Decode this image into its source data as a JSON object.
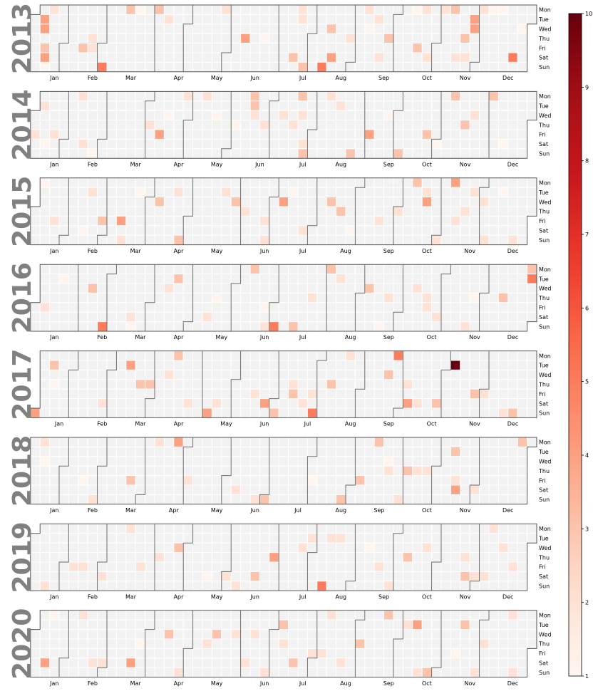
{
  "chart_data": {
    "type": "heatmap",
    "title": "",
    "years": [
      "2013",
      "2014",
      "2015",
      "2016",
      "2017",
      "2018",
      "2019",
      "2020"
    ],
    "weekday_labels": [
      "Mon",
      "Tue",
      "Wed",
      "Thu",
      "Fri",
      "Sat",
      "Sun"
    ],
    "month_labels": [
      "Jan",
      "Feb",
      "Mar",
      "Apr",
      "May",
      "Jun",
      "Jul",
      "Aug",
      "Sep",
      "Oct",
      "Nov",
      "Dec"
    ],
    "colorbar": {
      "min": 1,
      "max": 10,
      "ticks": [
        "1",
        "2",
        "3",
        "4",
        "5",
        "6",
        "7",
        "8",
        "9",
        "10"
      ],
      "colormap": "Reds"
    },
    "empty_color": "#f2f2f2",
    "values": {
      "2013": [
        [
          "2013-01-08",
          4
        ],
        [
          "2013-01-09",
          4
        ],
        [
          "2013-01-11",
          3
        ],
        [
          "2013-01-12",
          4
        ],
        [
          "2013-01-13",
          1
        ],
        [
          "2013-01-14",
          2
        ],
        [
          "2013-02-08",
          3
        ],
        [
          "2013-02-14",
          2
        ],
        [
          "2013-02-15",
          2
        ],
        [
          "2013-02-24",
          5
        ],
        [
          "2013-03-11",
          3
        ],
        [
          "2013-03-18",
          1
        ],
        [
          "2013-04-01",
          3
        ],
        [
          "2013-04-09",
          2
        ],
        [
          "2013-05-20",
          2
        ],
        [
          "2013-06-06",
          4
        ],
        [
          "2013-06-20",
          1
        ],
        [
          "2013-07-13",
          3
        ],
        [
          "2013-07-15",
          2
        ],
        [
          "2013-07-16",
          2
        ],
        [
          "2013-07-21",
          3
        ],
        [
          "2013-08-04",
          5
        ],
        [
          "2013-08-07",
          3
        ],
        [
          "2013-08-10",
          4
        ],
        [
          "2013-08-22",
          2
        ],
        [
          "2013-09-02",
          2
        ],
        [
          "2013-09-04",
          1
        ],
        [
          "2013-09-10",
          2
        ],
        [
          "2013-09-14",
          2
        ],
        [
          "2013-09-19",
          3
        ],
        [
          "2013-10-07",
          1
        ],
        [
          "2013-10-11",
          3
        ],
        [
          "2013-10-14",
          2
        ],
        [
          "2013-10-19",
          2
        ],
        [
          "2013-10-28",
          2
        ],
        [
          "2013-11-04",
          3
        ],
        [
          "2013-11-09",
          2
        ],
        [
          "2013-11-14",
          3
        ],
        [
          "2013-11-16",
          2
        ],
        [
          "2013-11-19",
          4
        ],
        [
          "2013-11-20",
          4
        ],
        [
          "2013-11-25",
          2
        ],
        [
          "2013-12-02",
          1
        ],
        [
          "2013-12-09",
          1
        ],
        [
          "2013-12-21",
          5
        ],
        [
          "2013-12-25",
          1
        ]
      ],
      "2014": [
        [
          "2014-01-03",
          2
        ],
        [
          "2014-01-07",
          2
        ],
        [
          "2014-01-11",
          1
        ],
        [
          "2014-01-17",
          2
        ],
        [
          "2014-02-03",
          2
        ],
        [
          "2014-02-08",
          2
        ],
        [
          "2014-02-16",
          1
        ],
        [
          "2014-03-27",
          2
        ],
        [
          "2014-04-04",
          4
        ],
        [
          "2014-04-09",
          1
        ],
        [
          "2014-04-21",
          2
        ],
        [
          "2014-05-05",
          2
        ],
        [
          "2014-05-14",
          1
        ],
        [
          "2014-05-29",
          1
        ],
        [
          "2014-06-09",
          3
        ],
        [
          "2014-06-10",
          3
        ],
        [
          "2014-06-11",
          2
        ],
        [
          "2014-06-19",
          2
        ],
        [
          "2014-07-02",
          2
        ],
        [
          "2014-07-10",
          2
        ],
        [
          "2014-07-14",
          3
        ],
        [
          "2014-07-16",
          2
        ],
        [
          "2014-07-19",
          2
        ],
        [
          "2014-07-20",
          3
        ],
        [
          "2014-08-04",
          2
        ],
        [
          "2014-08-12",
          2
        ],
        [
          "2014-08-24",
          3
        ],
        [
          "2014-09-05",
          4
        ],
        [
          "2014-09-17",
          1
        ],
        [
          "2014-09-28",
          3
        ],
        [
          "2014-10-17",
          3
        ],
        [
          "2014-10-25",
          1
        ],
        [
          "2014-11-03",
          3
        ],
        [
          "2014-11-13",
          3
        ],
        [
          "2014-11-19",
          2
        ],
        [
          "2014-12-01",
          3
        ],
        [
          "2014-12-13",
          1
        ]
      ],
      "2015": [
        [
          "2015-01-05",
          1
        ],
        [
          "2015-01-16",
          2
        ],
        [
          "2015-02-07",
          1
        ],
        [
          "2015-02-10",
          2
        ],
        [
          "2015-02-20",
          3
        ],
        [
          "2015-03-06",
          4
        ],
        [
          "2015-03-08",
          2
        ],
        [
          "2015-03-17",
          1
        ],
        [
          "2015-04-01",
          3
        ],
        [
          "2015-04-14",
          2
        ],
        [
          "2015-04-19",
          3
        ],
        [
          "2015-05-19",
          2
        ],
        [
          "2015-05-27",
          3
        ],
        [
          "2015-06-04",
          2
        ],
        [
          "2015-06-19",
          2
        ],
        [
          "2015-06-21",
          2
        ],
        [
          "2015-07-01",
          4
        ],
        [
          "2015-07-07",
          1
        ],
        [
          "2015-07-18",
          2
        ],
        [
          "2015-08-05",
          3
        ],
        [
          "2015-08-13",
          3
        ],
        [
          "2015-08-22",
          1
        ],
        [
          "2015-09-11",
          2
        ],
        [
          "2015-09-24",
          2
        ],
        [
          "2015-10-05",
          3
        ],
        [
          "2015-10-13",
          2
        ],
        [
          "2015-10-14",
          4
        ],
        [
          "2015-10-25",
          2
        ],
        [
          "2015-11-02",
          4
        ],
        [
          "2015-11-06",
          2
        ],
        [
          "2015-11-12",
          2
        ],
        [
          "2015-11-17",
          2
        ],
        [
          "2015-11-25",
          2
        ],
        [
          "2015-11-29",
          2
        ],
        [
          "2015-12-08",
          1
        ],
        [
          "2015-12-20",
          2
        ]
      ],
      "2016": [
        [
          "2016-01-08",
          2
        ],
        [
          "2016-01-19",
          1
        ],
        [
          "2016-02-10",
          3
        ],
        [
          "2016-02-21",
          5
        ],
        [
          "2016-03-12",
          2
        ],
        [
          "2016-03-13",
          1
        ],
        [
          "2016-04-06",
          2
        ],
        [
          "2016-04-12",
          3
        ],
        [
          "2016-05-07",
          2
        ],
        [
          "2016-05-12",
          1
        ],
        [
          "2016-06-06",
          3
        ],
        [
          "2016-06-17",
          1
        ],
        [
          "2016-06-19",
          2
        ],
        [
          "2016-06-26",
          5
        ],
        [
          "2016-07-10",
          3
        ],
        [
          "2016-07-21",
          2
        ],
        [
          "2016-08-01",
          3
        ],
        [
          "2016-08-09",
          2
        ],
        [
          "2016-08-31",
          3
        ],
        [
          "2016-09-11",
          1
        ],
        [
          "2016-09-15",
          2
        ],
        [
          "2016-10-05",
          2
        ],
        [
          "2016-10-13",
          2
        ],
        [
          "2016-10-14",
          2
        ],
        [
          "2016-10-22",
          2
        ],
        [
          "2016-11-13",
          2
        ],
        [
          "2016-11-17",
          1
        ],
        [
          "2016-12-08",
          3
        ],
        [
          "2016-12-26",
          3
        ],
        [
          "2016-12-27",
          5
        ]
      ],
      "2017": [
        [
          "2017-01-01",
          4
        ],
        [
          "2017-01-10",
          3
        ],
        [
          "2017-01-12",
          1
        ],
        [
          "2017-02-18",
          2
        ],
        [
          "2017-03-07",
          4
        ],
        [
          "2017-03-16",
          3
        ],
        [
          "2017-03-23",
          3
        ],
        [
          "2017-04-05",
          2
        ],
        [
          "2017-04-10",
          3
        ],
        [
          "2017-04-22",
          2
        ],
        [
          "2017-05-07",
          4
        ],
        [
          "2017-05-13",
          2
        ],
        [
          "2017-06-09",
          2
        ],
        [
          "2017-06-17",
          4
        ],
        [
          "2017-06-25",
          3
        ],
        [
          "2017-07-06",
          2
        ],
        [
          "2017-07-07",
          3
        ],
        [
          "2017-07-15",
          2
        ],
        [
          "2017-07-21",
          2
        ],
        [
          "2017-07-23",
          5
        ],
        [
          "2017-08-03",
          3
        ],
        [
          "2017-08-14",
          2
        ],
        [
          "2017-09-13",
          3
        ],
        [
          "2017-09-18",
          5
        ],
        [
          "2017-09-28",
          2
        ],
        [
          "2017-09-30",
          4
        ],
        [
          "2017-10-07",
          2
        ],
        [
          "2017-10-21",
          3
        ],
        [
          "2017-10-31",
          10
        ],
        [
          "2017-11-17",
          3
        ],
        [
          "2017-11-24",
          2
        ],
        [
          "2017-12-10",
          2
        ],
        [
          "2017-12-17",
          3
        ]
      ],
      "2018": [
        [
          "2018-01-08",
          2
        ],
        [
          "2018-01-10",
          1
        ],
        [
          "2018-02-09",
          1
        ],
        [
          "2018-02-18",
          2
        ],
        [
          "2018-03-16",
          3
        ],
        [
          "2018-04-02",
          2
        ],
        [
          "2018-04-16",
          4
        ],
        [
          "2018-04-27",
          2
        ],
        [
          "2018-06-02",
          2
        ],
        [
          "2018-06-17",
          2
        ],
        [
          "2018-06-24",
          3
        ],
        [
          "2018-07-27",
          1
        ],
        [
          "2018-08-19",
          3
        ],
        [
          "2018-08-31",
          3
        ],
        [
          "2018-09-10",
          3
        ],
        [
          "2018-09-19",
          1
        ],
        [
          "2018-09-20",
          2
        ],
        [
          "2018-09-30",
          2
        ],
        [
          "2018-10-04",
          3
        ],
        [
          "2018-10-11",
          2
        ],
        [
          "2018-10-18",
          2
        ],
        [
          "2018-11-06",
          3
        ],
        [
          "2018-11-09",
          2
        ],
        [
          "2018-11-10",
          4
        ],
        [
          "2018-11-24",
          2
        ],
        [
          "2018-12-24",
          3
        ]
      ],
      "2019": [
        [
          "2019-01-13",
          2
        ],
        [
          "2019-02-01",
          2
        ],
        [
          "2019-02-08",
          2
        ],
        [
          "2019-02-23",
          2
        ],
        [
          "2019-03-11",
          2
        ],
        [
          "2019-03-22",
          2
        ],
        [
          "2019-04-04",
          2
        ],
        [
          "2019-04-17",
          3
        ],
        [
          "2019-05-11",
          1
        ],
        [
          "2019-05-25",
          2
        ],
        [
          "2019-06-02",
          2
        ],
        [
          "2019-06-15",
          3
        ],
        [
          "2019-06-27",
          4
        ],
        [
          "2019-07-17",
          2
        ],
        [
          "2019-07-23",
          2
        ],
        [
          "2019-08-04",
          5
        ],
        [
          "2019-08-06",
          2
        ],
        [
          "2019-08-13",
          2
        ],
        [
          "2019-09-04",
          1
        ],
        [
          "2019-09-13",
          2
        ],
        [
          "2019-09-22",
          2
        ],
        [
          "2019-10-03",
          3
        ],
        [
          "2019-10-16",
          2
        ],
        [
          "2019-11-14",
          2
        ],
        [
          "2019-11-16",
          3
        ],
        [
          "2019-11-23",
          2
        ],
        [
          "2019-11-30",
          2
        ],
        [
          "2019-12-02",
          2
        ],
        [
          "2019-12-11",
          2
        ],
        [
          "2019-12-20",
          2
        ]
      ],
      "2020": [
        [
          "2020-01-11",
          4
        ],
        [
          "2020-01-13",
          1
        ],
        [
          "2020-02-03",
          2
        ],
        [
          "2020-02-15",
          2
        ],
        [
          "2020-02-22",
          2
        ],
        [
          "2020-03-14",
          4
        ],
        [
          "2020-03-19",
          1
        ],
        [
          "2020-04-08",
          3
        ],
        [
          "2020-04-19",
          2
        ],
        [
          "2020-05-07",
          2
        ],
        [
          "2020-05-13",
          3
        ],
        [
          "2020-05-27",
          2
        ],
        [
          "2020-06-06",
          2
        ],
        [
          "2020-06-10",
          2
        ],
        [
          "2020-06-21",
          2
        ],
        [
          "2020-06-30",
          3
        ],
        [
          "2020-07-02",
          2
        ],
        [
          "2020-07-11",
          3
        ],
        [
          "2020-07-24",
          2
        ],
        [
          "2020-07-31",
          2
        ],
        [
          "2020-08-03",
          2
        ],
        [
          "2020-08-15",
          2
        ],
        [
          "2020-08-27",
          3
        ],
        [
          "2020-09-14",
          3
        ],
        [
          "2020-09-29",
          2
        ],
        [
          "2020-10-06",
          4
        ],
        [
          "2020-10-11",
          2
        ],
        [
          "2020-10-18",
          3
        ],
        [
          "2020-11-06",
          1
        ],
        [
          "2020-11-10",
          3
        ],
        [
          "2020-11-22",
          2
        ],
        [
          "2020-11-26",
          2
        ],
        [
          "2020-12-14",
          2
        ],
        [
          "2020-12-20",
          2
        ]
      ]
    }
  }
}
